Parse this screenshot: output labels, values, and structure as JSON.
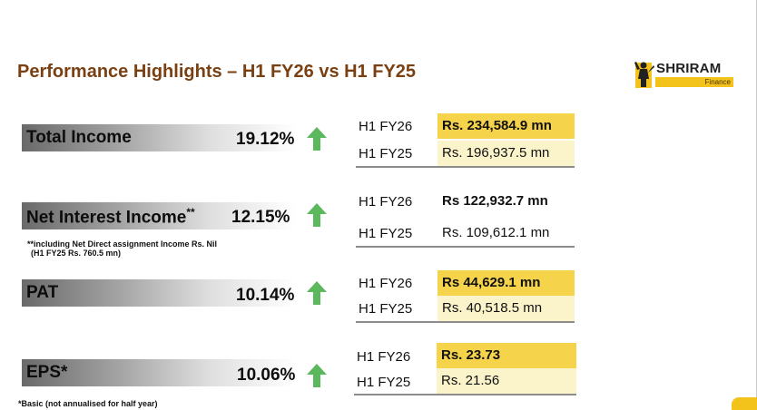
{
  "title": "Performance Highlights – H1 FY26 vs H1 FY25",
  "logo": {
    "name": "SHRIRAM",
    "sub": "Finance"
  },
  "colors": {
    "title": "#7a4012",
    "highlight": "#f5d44c",
    "highlight_light": "#fbf3c9",
    "arrow": "#5cb85c"
  },
  "metrics": [
    {
      "label": "Total Income",
      "suffix": "",
      "pct": "19.12%"
    },
    {
      "label": "Net Interest Income",
      "suffix": "**",
      "pct": "12.15%"
    },
    {
      "label": "PAT",
      "suffix": "",
      "pct": "10.14%"
    },
    {
      "label": "EPS",
      "suffix": "*",
      "pct": "10.06%"
    }
  ],
  "nii_note": {
    "line1": "**including Net Direct assignment Income Rs. Nil",
    "line2": "(H1 FY25 Rs. 760.5 mn)"
  },
  "eps_footnote": "*Basic (not annualised for half year)",
  "comparisons": [
    {
      "cur_label": "H1 FY26",
      "cur_value": "Rs. 234,584.9 mn",
      "prev_label": "H1 FY25",
      "prev_value": "Rs. 196,937.5 mn"
    },
    {
      "cur_label": "H1 FY26",
      "cur_value": "Rs  122,932.7 mn",
      "prev_label": "H1 FY25",
      "prev_value": "Rs. 109,612.1 mn"
    },
    {
      "cur_label": "H1 FY26",
      "cur_value": "Rs  44,629.1 mn",
      "prev_label": "H1 FY25",
      "prev_value": "Rs. 40,518.5 mn"
    },
    {
      "cur_label": "H1 FY26",
      "cur_value": "Rs. 23.73",
      "prev_label": "H1 FY25",
      "prev_value": "Rs. 21.56"
    }
  ]
}
